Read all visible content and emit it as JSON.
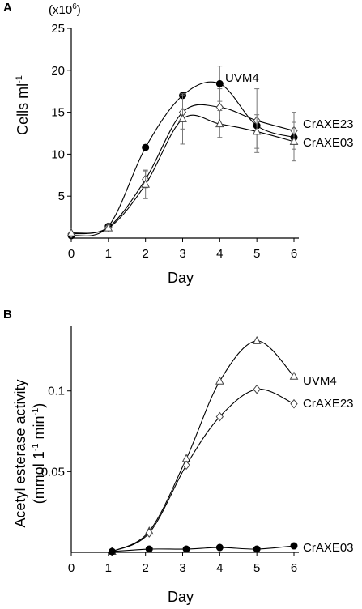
{
  "chart_data": [
    {
      "panel_label": "A",
      "type": "line",
      "x": [
        0,
        1,
        2,
        3,
        4,
        5,
        6
      ],
      "xlabel": "Day",
      "ylabel": "Cells ml",
      "ylabel_sup": "-1",
      "y_multiplier": "(x10",
      "y_multiplier_sup": "6",
      "y_multiplier_close": ")",
      "xlim": [
        0,
        6
      ],
      "ylim": [
        0,
        25
      ],
      "xticks": [
        0,
        1,
        2,
        3,
        4,
        5,
        6
      ],
      "yticks": [
        5,
        10,
        15,
        20,
        25
      ],
      "series": [
        {
          "name": "UVM4",
          "marker": "filled-circle",
          "color": "#000000",
          "values": [
            0.3,
            1.4,
            10.8,
            17.0,
            18.4,
            13.4,
            12.0
          ],
          "errors": [
            0,
            0,
            0,
            0,
            2.1,
            0,
            0
          ]
        },
        {
          "name": "CrAXE23",
          "marker": "open-diamond",
          "color": "#000000",
          "values": [
            0.5,
            1.3,
            7.0,
            15.0,
            15.6,
            14.0,
            12.8
          ],
          "errors": [
            0,
            0,
            1.0,
            2.0,
            2.2,
            3.8,
            2.2
          ]
        },
        {
          "name": "CrAXE03",
          "marker": "open-triangle",
          "color": "#000000",
          "values": [
            0.6,
            1.2,
            6.4,
            14.2,
            13.6,
            12.7,
            11.5
          ],
          "errors": [
            0,
            0,
            1.7,
            3.0,
            1.6,
            2.0,
            2.3
          ]
        }
      ]
    },
    {
      "panel_label": "B",
      "type": "line",
      "x": [
        0,
        1,
        2,
        3,
        4,
        5,
        6
      ],
      "xlabel": "Day",
      "ylabel": "Acetyl esterase activity",
      "ylabel2": "(mmol 1",
      "ylabel2_sup1": "-1",
      "ylabel2_mid": " min",
      "ylabel2_sup2": "-1",
      "ylabel2_close": ")",
      "xlim": [
        0,
        6
      ],
      "ylim": [
        0,
        0.14
      ],
      "xticks": [
        0,
        1,
        2,
        3,
        4,
        5,
        6
      ],
      "ytick_labels": [
        "0.05",
        "0.1"
      ],
      "yticks": [
        0.05,
        0.1
      ],
      "series": [
        {
          "name": "CrAXE03",
          "marker": "open-triangle",
          "color": "#000000",
          "x": [
            1.1,
            2.1,
            3.1,
            4.0,
            5.0,
            6.0
          ],
          "values": [
            0.0005,
            0.013,
            0.058,
            0.106,
            0.131,
            0.109
          ]
        },
        {
          "name": "CrAXE23",
          "marker": "open-diamond",
          "color": "#000000",
          "x": [
            1.1,
            2.1,
            3.1,
            4.0,
            5.0,
            6.0
          ],
          "values": [
            0.0005,
            0.012,
            0.054,
            0.084,
            0.101,
            0.092
          ]
        },
        {
          "name": "UVM4",
          "marker": "filled-circle",
          "color": "#000000",
          "x": [
            1.1,
            2.1,
            3.1,
            4.0,
            5.0,
            6.0
          ],
          "values": [
            0.0005,
            0.002,
            0.002,
            0.003,
            0.002,
            0.004
          ]
        }
      ]
    }
  ]
}
